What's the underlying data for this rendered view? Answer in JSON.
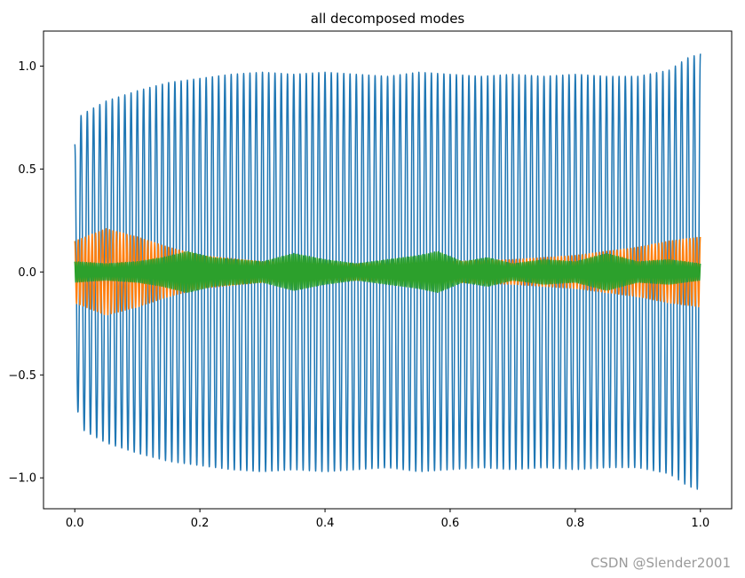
{
  "chart_data": {
    "type": "line",
    "title": "all decomposed modes",
    "xlabel": "",
    "ylabel": "",
    "xlim": [
      -0.05,
      1.05
    ],
    "ylim": [
      -1.15,
      1.17
    ],
    "xticks": [
      0.0,
      0.2,
      0.4,
      0.6,
      0.8,
      1.0
    ],
    "xtick_labels": [
      "0.0",
      "0.2",
      "0.4",
      "0.6",
      "0.8",
      "1.0"
    ],
    "yticks": [
      -1.0,
      -0.5,
      0.0,
      0.5,
      1.0
    ],
    "ytick_labels": [
      "−1.0",
      "−0.5",
      "0.0",
      "0.5",
      "1.0"
    ],
    "grid": false,
    "legend": "none",
    "series": [
      {
        "color": "#1f77b4",
        "frequency_cycles": 100,
        "envelope_x": [
          0.0,
          0.005,
          0.01,
          0.02,
          0.05,
          0.1,
          0.15,
          0.2,
          0.25,
          0.3,
          0.35,
          0.4,
          0.45,
          0.5,
          0.55,
          0.6,
          0.65,
          0.7,
          0.75,
          0.8,
          0.85,
          0.9,
          0.95,
          0.98,
          1.0
        ],
        "envelope_amplitude": [
          0.62,
          0.68,
          0.76,
          0.78,
          0.83,
          0.88,
          0.92,
          0.94,
          0.96,
          0.97,
          0.96,
          0.97,
          0.96,
          0.95,
          0.97,
          0.96,
          0.95,
          0.96,
          0.95,
          0.96,
          0.95,
          0.95,
          0.98,
          1.04,
          1.06
        ]
      },
      {
        "color": "#ff7f0e",
        "frequency_cycles": 180,
        "envelope_x": [
          0.0,
          0.05,
          0.1,
          0.15,
          0.2,
          0.3,
          0.4,
          0.5,
          0.6,
          0.7,
          0.8,
          0.9,
          0.95,
          1.0
        ],
        "envelope_amplitude": [
          0.15,
          0.21,
          0.17,
          0.12,
          0.08,
          0.05,
          0.04,
          0.04,
          0.05,
          0.06,
          0.08,
          0.12,
          0.15,
          0.17
        ]
      },
      {
        "color": "#2ca02c",
        "frequency_cycles": 320,
        "envelope_x": [
          0.0,
          0.05,
          0.1,
          0.14,
          0.18,
          0.22,
          0.3,
          0.35,
          0.4,
          0.45,
          0.5,
          0.55,
          0.58,
          0.62,
          0.66,
          0.7,
          0.75,
          0.8,
          0.85,
          0.9,
          0.95,
          1.0
        ],
        "envelope_amplitude": [
          0.05,
          0.04,
          0.05,
          0.07,
          0.1,
          0.07,
          0.05,
          0.09,
          0.06,
          0.04,
          0.06,
          0.08,
          0.1,
          0.05,
          0.07,
          0.04,
          0.06,
          0.05,
          0.09,
          0.05,
          0.06,
          0.04
        ]
      }
    ]
  },
  "watermark": "CSDN @Slender2001"
}
